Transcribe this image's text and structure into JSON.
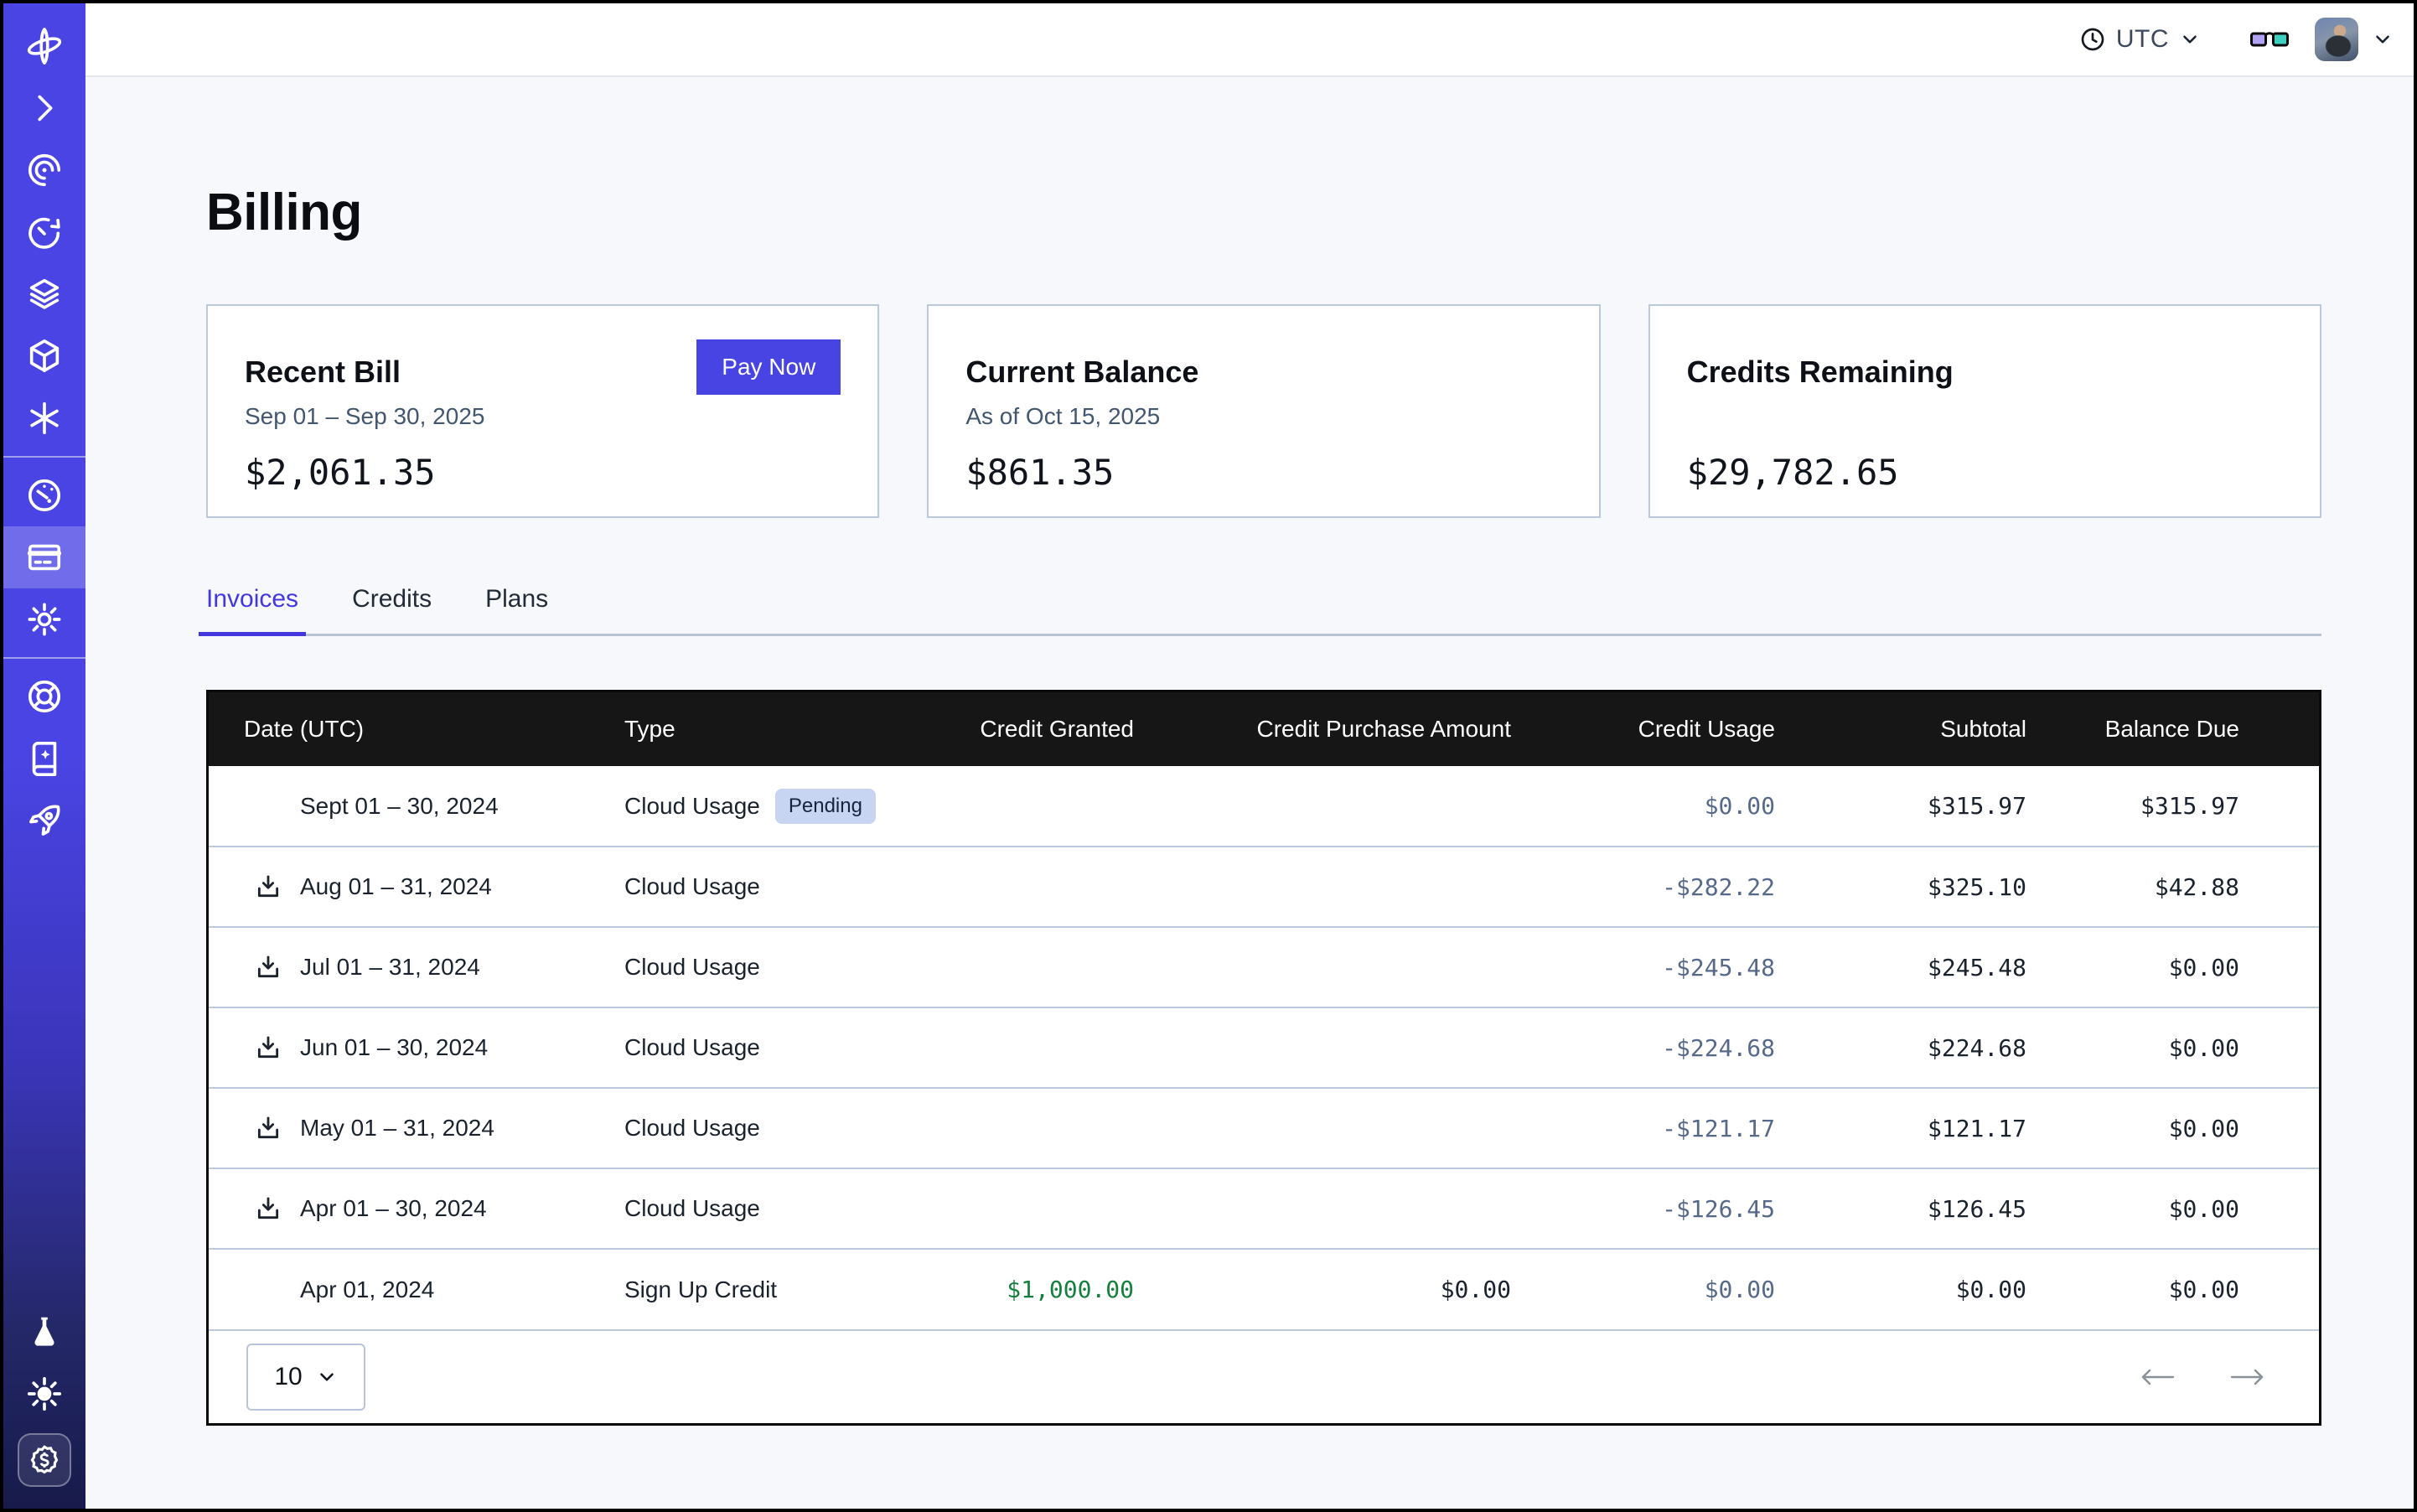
{
  "topbar": {
    "timezone_label": "UTC"
  },
  "page_title": "Billing",
  "cards": {
    "recent_bill": {
      "title": "Recent Bill",
      "period": "Sep 01 – Sep 30, 2025",
      "amount": "$2,061.35",
      "action": "Pay Now"
    },
    "current_balance": {
      "title": "Current Balance",
      "as_of": "As of Oct 15, 2025",
      "amount": "$861.35"
    },
    "credits_remaining": {
      "title": "Credits Remaining",
      "as_of": "",
      "amount": "$29,782.65"
    }
  },
  "tabs": [
    {
      "label": "Invoices",
      "active": true
    },
    {
      "label": "Credits",
      "active": false
    },
    {
      "label": "Plans",
      "active": false
    }
  ],
  "invoice_table": {
    "columns": [
      "Date (UTC)",
      "Type",
      "Credit Granted",
      "Credit Purchase Amount",
      "Credit Usage",
      "Subtotal",
      "Balance Due"
    ],
    "rows": [
      {
        "date": "Sept 01 – 30, 2024",
        "type": "Cloud Usage",
        "badge": "Pending",
        "download": false,
        "credit_granted": "",
        "credit_purchase_amount": "",
        "credit_usage": "$0.00",
        "subtotal": "$315.97",
        "balance_due": "$315.97"
      },
      {
        "date": "Aug 01 – 31, 2024",
        "type": "Cloud Usage",
        "download": true,
        "credit_granted": "",
        "credit_purchase_amount": "",
        "credit_usage": "-$282.22",
        "subtotal": "$325.10",
        "balance_due": "$42.88"
      },
      {
        "date": "Jul 01 – 31, 2024",
        "type": "Cloud Usage",
        "download": true,
        "credit_granted": "",
        "credit_purchase_amount": "",
        "credit_usage": "-$245.48",
        "subtotal": "$245.48",
        "balance_due": "$0.00"
      },
      {
        "date": "Jun 01 – 30, 2024",
        "type": "Cloud Usage",
        "download": true,
        "credit_granted": "",
        "credit_purchase_amount": "",
        "credit_usage": "-$224.68",
        "subtotal": "$224.68",
        "balance_due": "$0.00"
      },
      {
        "date": "May 01 – 31, 2024",
        "type": "Cloud Usage",
        "download": true,
        "credit_granted": "",
        "credit_purchase_amount": "",
        "credit_usage": "-$121.17",
        "subtotal": "$121.17",
        "balance_due": "$0.00"
      },
      {
        "date": "Apr 01 – 30, 2024",
        "type": "Cloud Usage",
        "download": true,
        "credit_granted": "",
        "credit_purchase_amount": "",
        "credit_usage": "-$126.45",
        "subtotal": "$126.45",
        "balance_due": "$0.00"
      },
      {
        "date": "Apr 01, 2024",
        "type": "Sign Up Credit",
        "download": false,
        "credit_granted": "$1,000.00",
        "credit_purchase_amount": "$0.00",
        "credit_usage": "$0.00",
        "subtotal": "$0.00",
        "balance_due": "$0.00"
      }
    ]
  },
  "pagination": {
    "page_size": "10"
  },
  "icons": {
    "sidebar": [
      "orbit-logo",
      "chevron-right",
      "spiral",
      "timer",
      "layers",
      "cube",
      "asterisk",
      "gauge",
      "credit-card",
      "gear",
      "lifebuoy",
      "book-sparkle",
      "rocket",
      "flask",
      "sun",
      "dollar-badge"
    ],
    "topbar": [
      "clock",
      "chevron-down",
      "glasses",
      "avatar",
      "chevron-down"
    ]
  },
  "colors": {
    "accent": "#4843e3",
    "sidebar_top": "#4a44e4",
    "sidebar_bottom": "#171a4a",
    "table_header_bg": "#161616",
    "pending_badge_bg": "#c7d5f2",
    "credit_usage_text": "#57698b",
    "credit_granted_green": "#15803d",
    "row_border": "#bdc9dc",
    "glasses_left_lens": "#b3a3f5",
    "glasses_right_lens": "#3ecfc0"
  }
}
